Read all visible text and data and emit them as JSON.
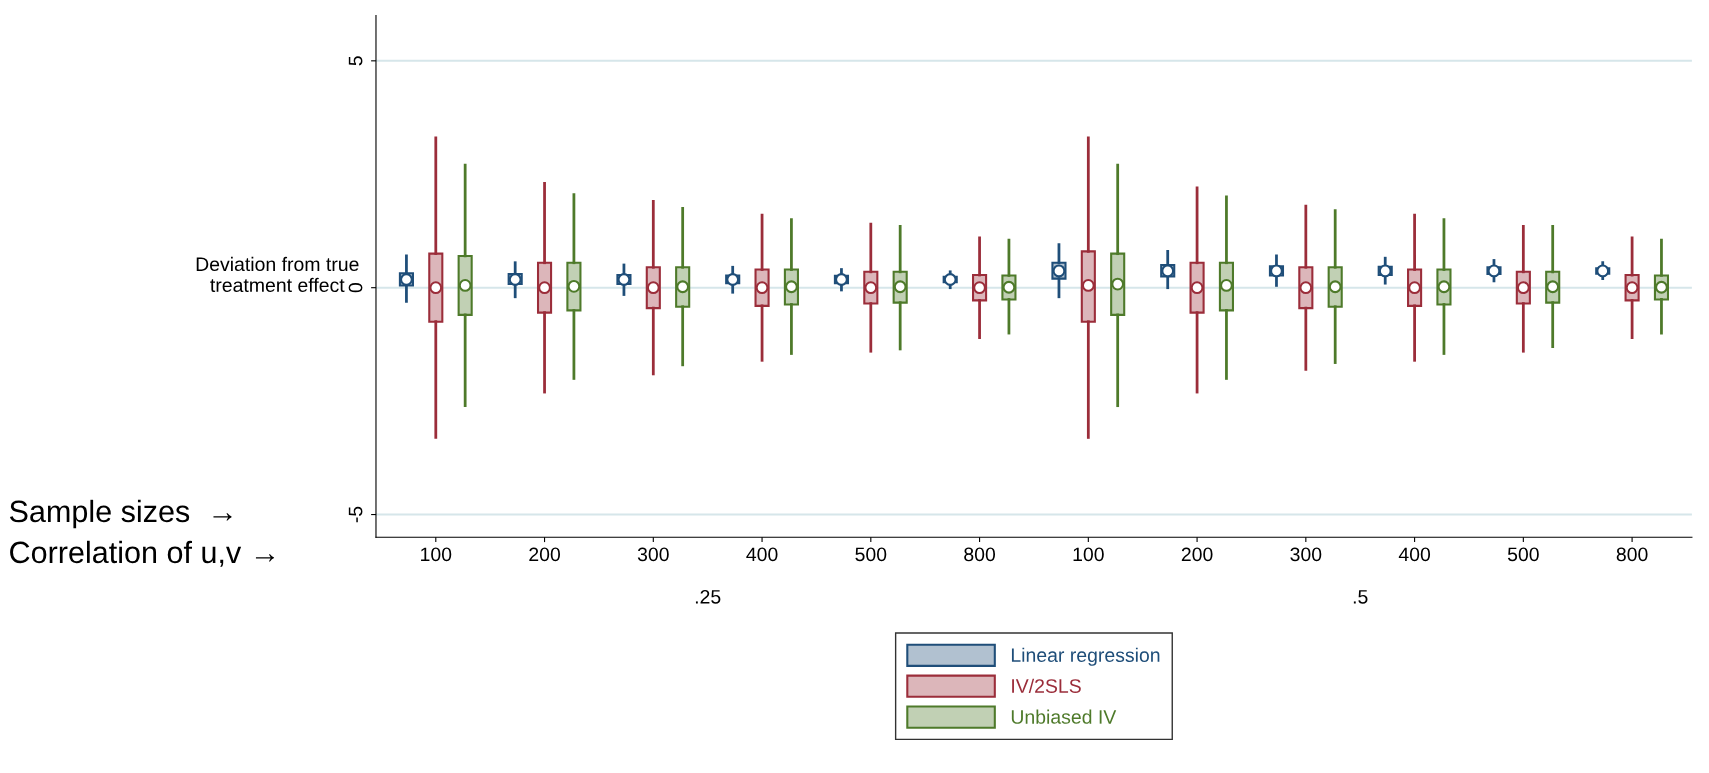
{
  "chart_data": {
    "type": "box",
    "ylabel": "Deviation from true treatment effect",
    "categories": [
      "100",
      "200",
      "300",
      "400",
      "500",
      "800",
      "100",
      "200",
      "300",
      "400",
      "500",
      "800"
    ],
    "series": [
      {
        "name": "Linear regression",
        "color": "#1f4e79",
        "boxes": [
          {
            "low": -0.3,
            "q1": 0.05,
            "median": 0.18,
            "q3": 0.32,
            "high": 0.7
          },
          {
            "low": -0.2,
            "q1": 0.08,
            "median": 0.18,
            "q3": 0.3,
            "high": 0.55
          },
          {
            "low": -0.15,
            "q1": 0.08,
            "median": 0.18,
            "q3": 0.28,
            "high": 0.5
          },
          {
            "low": -0.1,
            "q1": 0.1,
            "median": 0.18,
            "q3": 0.27,
            "high": 0.45
          },
          {
            "low": -0.05,
            "q1": 0.1,
            "median": 0.18,
            "q3": 0.26,
            "high": 0.4
          },
          {
            "low": 0.0,
            "q1": 0.12,
            "median": 0.18,
            "q3": 0.24,
            "high": 0.35
          },
          {
            "low": -0.2,
            "q1": 0.2,
            "median": 0.37,
            "q3": 0.55,
            "high": 0.95
          },
          {
            "low": 0.0,
            "q1": 0.25,
            "median": 0.37,
            "q3": 0.5,
            "high": 0.8
          },
          {
            "low": 0.05,
            "q1": 0.27,
            "median": 0.37,
            "q3": 0.47,
            "high": 0.7
          },
          {
            "low": 0.1,
            "q1": 0.28,
            "median": 0.37,
            "q3": 0.46,
            "high": 0.65
          },
          {
            "low": 0.15,
            "q1": 0.3,
            "median": 0.37,
            "q3": 0.45,
            "high": 0.6
          },
          {
            "low": 0.2,
            "q1": 0.31,
            "median": 0.37,
            "q3": 0.43,
            "high": 0.55
          }
        ]
      },
      {
        "name": "IV/2SLS",
        "color": "#9b2d3a",
        "boxes": [
          {
            "low": -3.3,
            "q1": -0.75,
            "median": 0.0,
            "q3": 0.75,
            "high": 3.3
          },
          {
            "low": -2.3,
            "q1": -0.55,
            "median": 0.0,
            "q3": 0.55,
            "high": 2.3
          },
          {
            "low": -1.9,
            "q1": -0.45,
            "median": 0.0,
            "q3": 0.45,
            "high": 1.9
          },
          {
            "low": -1.6,
            "q1": -0.4,
            "median": 0.0,
            "q3": 0.4,
            "high": 1.6
          },
          {
            "low": -1.4,
            "q1": -0.35,
            "median": 0.0,
            "q3": 0.35,
            "high": 1.4
          },
          {
            "low": -1.1,
            "q1": -0.28,
            "median": 0.0,
            "q3": 0.28,
            "high": 1.1
          },
          {
            "low": -3.3,
            "q1": -0.75,
            "median": 0.05,
            "q3": 0.8,
            "high": 3.3
          },
          {
            "low": -2.3,
            "q1": -0.55,
            "median": 0.0,
            "q3": 0.55,
            "high": 2.2
          },
          {
            "low": -1.8,
            "q1": -0.45,
            "median": 0.0,
            "q3": 0.45,
            "high": 1.8
          },
          {
            "low": -1.6,
            "q1": -0.4,
            "median": 0.0,
            "q3": 0.4,
            "high": 1.6
          },
          {
            "low": -1.4,
            "q1": -0.35,
            "median": 0.0,
            "q3": 0.35,
            "high": 1.35
          },
          {
            "low": -1.1,
            "q1": -0.28,
            "median": 0.0,
            "q3": 0.28,
            "high": 1.1
          }
        ]
      },
      {
        "name": "Unbiased IV",
        "color": "#4e7a2a",
        "boxes": [
          {
            "low": -2.6,
            "q1": -0.6,
            "median": 0.05,
            "q3": 0.7,
            "high": 2.7
          },
          {
            "low": -2.0,
            "q1": -0.5,
            "median": 0.03,
            "q3": 0.55,
            "high": 2.05
          },
          {
            "low": -1.7,
            "q1": -0.42,
            "median": 0.02,
            "q3": 0.45,
            "high": 1.75
          },
          {
            "low": -1.45,
            "q1": -0.37,
            "median": 0.02,
            "q3": 0.4,
            "high": 1.5
          },
          {
            "low": -1.35,
            "q1": -0.33,
            "median": 0.02,
            "q3": 0.35,
            "high": 1.35
          },
          {
            "low": -1.0,
            "q1": -0.26,
            "median": 0.01,
            "q3": 0.27,
            "high": 1.05
          },
          {
            "low": -2.6,
            "q1": -0.6,
            "median": 0.08,
            "q3": 0.75,
            "high": 2.7
          },
          {
            "low": -2.0,
            "q1": -0.5,
            "median": 0.05,
            "q3": 0.55,
            "high": 2.0
          },
          {
            "low": -1.65,
            "q1": -0.42,
            "median": 0.02,
            "q3": 0.45,
            "high": 1.7
          },
          {
            "low": -1.45,
            "q1": -0.37,
            "median": 0.02,
            "q3": 0.4,
            "high": 1.5
          },
          {
            "low": -1.3,
            "q1": -0.33,
            "median": 0.02,
            "q3": 0.35,
            "high": 1.35
          },
          {
            "low": -1.0,
            "q1": -0.26,
            "median": 0.01,
            "q3": 0.27,
            "high": 1.05
          }
        ]
      }
    ],
    "ylim": [
      -5.5,
      6
    ],
    "yticks": [
      -5,
      0,
      5
    ],
    "grid": "y",
    "legend": "bottom",
    "annotations": [
      "Sample sizes  →",
      "Correlation of u,v →",
      ".25",
      ".5"
    ]
  }
}
